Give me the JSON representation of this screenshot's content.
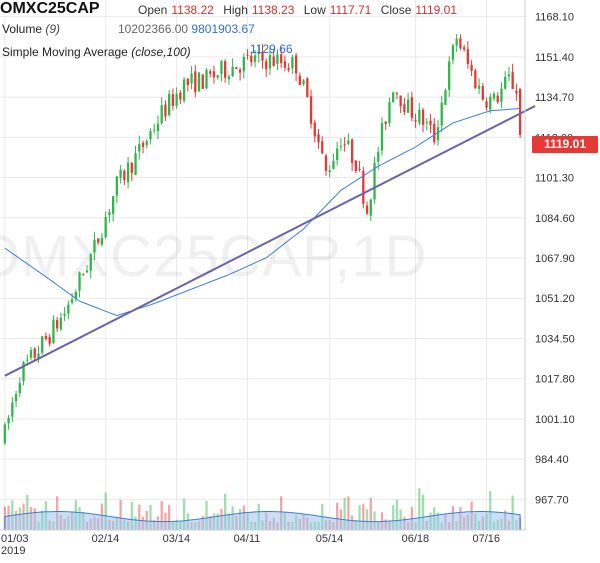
{
  "header": {
    "symbol": "OMXC25CAP",
    "open_label": "Open",
    "open": "1138.22",
    "high_label": "High",
    "high": "1138.23",
    "low_label": "Low",
    "low": "1117.71",
    "close_label": "Close",
    "close": "1119.01",
    "volume_label": "Volume",
    "volume_param": "(9)",
    "volume_value": "10202366.00",
    "volume_ma_value": "9801903.67",
    "sma_label": "Simple Moving Average",
    "sma_param": "(close,100)",
    "sma_value": "1129.66"
  },
  "watermark": "OMXC25CAP,1D",
  "last_price_tag": "1119.01",
  "colors": {
    "up": "#2db84a",
    "down": "#e53935",
    "sma": "#3b7ddd",
    "trendline": "#6b63a8",
    "volume_area": "#9ec4ee",
    "grid": "#e9e9e9"
  },
  "chart_data": {
    "type": "candlestick",
    "ylim": [
      955,
      1175
    ],
    "y_ticks": [
      "1168.10",
      "1151.40",
      "1134.70",
      "1118.00",
      "1101.30",
      "1084.60",
      "1067.90",
      "1051.20",
      "1034.50",
      "1017.80",
      "1001.10",
      "984.40",
      "967.70"
    ],
    "x_ticks": [
      "01/03",
      "02/14",
      "03/14",
      "04/11",
      "05/14",
      "06/18",
      "07/16"
    ],
    "x_tick_index": [
      0,
      27,
      46,
      65,
      87,
      110,
      129
    ],
    "x_year": "2019",
    "keypoints": [
      [
        0,
        995
      ],
      [
        4,
        1020
      ],
      [
        10,
        1032
      ],
      [
        16,
        1045
      ],
      [
        24,
        1072
      ],
      [
        30,
        1098
      ],
      [
        36,
        1112
      ],
      [
        42,
        1128
      ],
      [
        48,
        1140
      ],
      [
        54,
        1142
      ],
      [
        60,
        1147
      ],
      [
        66,
        1150
      ],
      [
        72,
        1150
      ],
      [
        78,
        1148
      ],
      [
        82,
        1128
      ],
      [
        86,
        1103
      ],
      [
        90,
        1118
      ],
      [
        94,
        1108
      ],
      [
        97,
        1088
      ],
      [
        100,
        1113
      ],
      [
        104,
        1140
      ],
      [
        108,
        1130
      ],
      [
        112,
        1125
      ],
      [
        115,
        1118
      ],
      [
        118,
        1140
      ],
      [
        121,
        1160
      ],
      [
        124,
        1148
      ],
      [
        128,
        1135
      ],
      [
        131,
        1133
      ],
      [
        135,
        1142
      ],
      [
        138,
        1136
      ]
    ],
    "last_candle": {
      "open": 1138.22,
      "high": 1138.23,
      "low": 1117.71,
      "close": 1119.01
    },
    "trendline": [
      [
        0,
        1019
      ],
      [
        142,
        1131
      ]
    ],
    "sma_keypoints": [
      [
        0,
        1072
      ],
      [
        12,
        1059
      ],
      [
        20,
        1050
      ],
      [
        30,
        1044
      ],
      [
        40,
        1049
      ],
      [
        50,
        1055
      ],
      [
        60,
        1061
      ],
      [
        70,
        1068
      ],
      [
        80,
        1080
      ],
      [
        90,
        1096
      ],
      [
        100,
        1106
      ],
      [
        110,
        1114
      ],
      [
        120,
        1124
      ],
      [
        130,
        1129
      ],
      [
        138,
        1130
      ]
    ]
  }
}
